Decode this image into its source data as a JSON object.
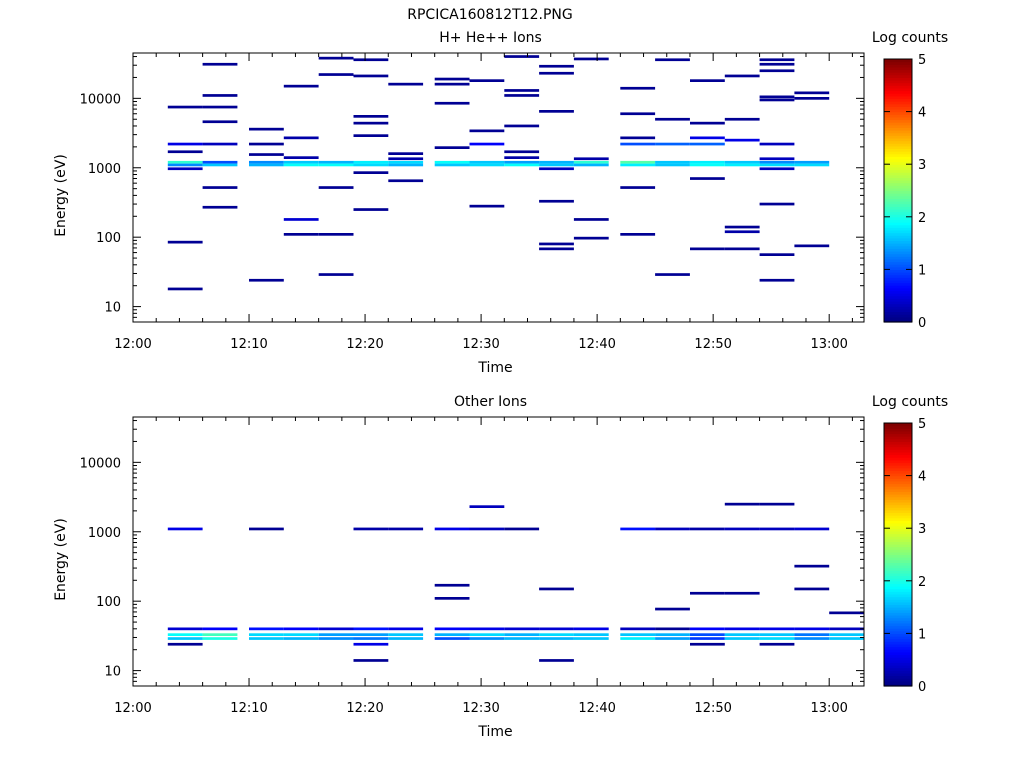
{
  "figure_title": "RPCICA160812T12.PNG",
  "chart_data": [
    {
      "type": "heatmap",
      "title": "H+ He++ Ions",
      "xlabel": "Time",
      "ylabel": "Energy (eV)",
      "y_scale": "log",
      "xlim": [
        "12:00",
        "13:03"
      ],
      "ylim": [
        6,
        45000
      ],
      "x_ticks": [
        "12:00",
        "12:10",
        "12:20",
        "12:30",
        "12:40",
        "12:50",
        "13:00"
      ],
      "y_ticks": [
        "10",
        "100",
        "1000",
        "10000"
      ],
      "colorbar": {
        "label": "Log counts",
        "range": [
          0,
          5
        ],
        "ticks": [
          "0",
          "1",
          "2",
          "3",
          "4",
          "5"
        ]
      },
      "time_bins": [
        "12:03",
        "12:06",
        "12:10",
        "12:13",
        "12:16",
        "12:19",
        "12:22",
        "12:26",
        "12:29",
        "12:32",
        "12:35",
        "12:38",
        "12:42",
        "12:45",
        "12:48",
        "12:51",
        "12:54",
        "12:57",
        "13:00"
      ],
      "cells": [
        [
          0,
          1200,
          2.1
        ],
        [
          0,
          1100,
          1.3
        ],
        [
          0,
          970,
          0.3
        ],
        [
          0,
          18,
          0.1
        ],
        [
          0,
          85,
          0.1
        ],
        [
          0,
          1700,
          0.1
        ],
        [
          0,
          2200,
          0.5
        ],
        [
          0,
          7500,
          0.1
        ],
        [
          1,
          1200,
          1.0
        ],
        [
          1,
          1100,
          1.6
        ],
        [
          1,
          2200,
          0.3
        ],
        [
          1,
          520,
          0.1
        ],
        [
          1,
          270,
          0.1
        ],
        [
          1,
          4600,
          0.1
        ],
        [
          1,
          7500,
          0.1
        ],
        [
          1,
          11000,
          0.1
        ],
        [
          1,
          31000,
          0.1
        ],
        [
          2,
          1200,
          1.3
        ],
        [
          2,
          1100,
          1.5
        ],
        [
          2,
          1550,
          0.1
        ],
        [
          2,
          24,
          0.1
        ],
        [
          2,
          2200,
          0.1
        ],
        [
          2,
          3600,
          0.1
        ],
        [
          3,
          1200,
          1.6
        ],
        [
          3,
          1100,
          1.9
        ],
        [
          3,
          1400,
          0.2
        ],
        [
          3,
          180,
          0.4
        ],
        [
          3,
          110,
          0.1
        ],
        [
          3,
          2700,
          0.2
        ],
        [
          3,
          15000,
          0.1
        ],
        [
          4,
          1200,
          1.5
        ],
        [
          4,
          1100,
          1.9
        ],
        [
          4,
          520,
          0.1
        ],
        [
          4,
          29,
          0.1
        ],
        [
          4,
          110,
          0.1
        ],
        [
          4,
          22000,
          0.1
        ],
        [
          4,
          38000,
          0.1
        ],
        [
          5,
          1200,
          1.8
        ],
        [
          5,
          1100,
          1.7
        ],
        [
          5,
          850,
          0.1
        ],
        [
          5,
          250,
          0.1
        ],
        [
          5,
          2900,
          0.1
        ],
        [
          5,
          4400,
          0.1
        ],
        [
          5,
          5500,
          0.1
        ],
        [
          5,
          21000,
          0.1
        ],
        [
          5,
          36000,
          0.1
        ],
        [
          6,
          1200,
          1.7
        ],
        [
          6,
          1100,
          1.5
        ],
        [
          6,
          1350,
          0.2
        ],
        [
          6,
          650,
          0.1
        ],
        [
          6,
          1600,
          0.1
        ],
        [
          6,
          16000,
          0.1
        ],
        [
          7,
          1200,
          1.9
        ],
        [
          7,
          1100,
          1.6
        ],
        [
          7,
          1950,
          0.1
        ],
        [
          7,
          8500,
          0.1
        ],
        [
          7,
          16000,
          0.1
        ],
        [
          7,
          19000,
          0.1
        ],
        [
          8,
          1200,
          1.6
        ],
        [
          8,
          1100,
          1.7
        ],
        [
          8,
          280,
          0.1
        ],
        [
          8,
          2200,
          0.6
        ],
        [
          8,
          3400,
          0.1
        ],
        [
          8,
          18000,
          0.1
        ],
        [
          9,
          1200,
          1.4
        ],
        [
          9,
          1100,
          1.9
        ],
        [
          9,
          1400,
          0.2
        ],
        [
          9,
          1700,
          0.1
        ],
        [
          9,
          4000,
          0.1
        ],
        [
          9,
          11000,
          0.1
        ],
        [
          9,
          13000,
          0.1
        ],
        [
          9,
          40000,
          0.1
        ],
        [
          10,
          1200,
          1.5
        ],
        [
          10,
          1100,
          1.6
        ],
        [
          10,
          970,
          0.3
        ],
        [
          10,
          80,
          0.1
        ],
        [
          10,
          68,
          0.1
        ],
        [
          10,
          330,
          0.1
        ],
        [
          10,
          6500,
          0.1
        ],
        [
          10,
          23000,
          0.1
        ],
        [
          10,
          29000,
          0.1
        ],
        [
          11,
          1200,
          2.1
        ],
        [
          11,
          1100,
          1.5
        ],
        [
          11,
          1350,
          0.2
        ],
        [
          11,
          180,
          0.1
        ],
        [
          11,
          97,
          0.1
        ],
        [
          11,
          37000,
          0.1
        ],
        [
          12,
          1200,
          2.3
        ],
        [
          12,
          1100,
          1.8
        ],
        [
          12,
          520,
          0.1
        ],
        [
          12,
          110,
          0.1
        ],
        [
          12,
          2200,
          1.0
        ],
        [
          12,
          2700,
          0.1
        ],
        [
          12,
          6000,
          0.1
        ],
        [
          12,
          14000,
          0.1
        ],
        [
          13,
          1200,
          1.6
        ],
        [
          13,
          1100,
          1.6
        ],
        [
          13,
          29,
          0.1
        ],
        [
          13,
          2200,
          1.1
        ],
        [
          13,
          5000,
          0.1
        ],
        [
          13,
          36000,
          0.1
        ],
        [
          14,
          1200,
          1.8
        ],
        [
          14,
          1100,
          1.9
        ],
        [
          14,
          700,
          0.1
        ],
        [
          14,
          68,
          0.1
        ],
        [
          14,
          2200,
          1.1
        ],
        [
          14,
          2700,
          0.5
        ],
        [
          14,
          4400,
          0.1
        ],
        [
          14,
          18000,
          0.1
        ],
        [
          15,
          1200,
          1.6
        ],
        [
          15,
          1100,
          1.8
        ],
        [
          15,
          68,
          0.1
        ],
        [
          15,
          120,
          0.2
        ],
        [
          15,
          140,
          0.1
        ],
        [
          15,
          2500,
          0.5
        ],
        [
          15,
          5000,
          0.1
        ],
        [
          15,
          21000,
          0.1
        ],
        [
          16,
          1200,
          1.3
        ],
        [
          16,
          1100,
          1.7
        ],
        [
          16,
          1350,
          0.3
        ],
        [
          16,
          970,
          0.3
        ],
        [
          16,
          24,
          0.1
        ],
        [
          16,
          56,
          0.1
        ],
        [
          16,
          300,
          0.1
        ],
        [
          16,
          2200,
          0.3
        ],
        [
          16,
          9500,
          0.1
        ],
        [
          16,
          10500,
          0.1
        ],
        [
          16,
          25000,
          0.1
        ],
        [
          16,
          31000,
          0.1
        ],
        [
          16,
          36000,
          0.1
        ],
        [
          17,
          1200,
          1.4
        ],
        [
          17,
          1100,
          1.7
        ],
        [
          17,
          75,
          0.1
        ],
        [
          17,
          10000,
          0.1
        ],
        [
          17,
          12000,
          0.1
        ]
      ]
    },
    {
      "type": "heatmap",
      "title": "Other Ions",
      "xlabel": "Time",
      "ylabel": "Energy (eV)",
      "y_scale": "log",
      "xlim": [
        "12:00",
        "13:03"
      ],
      "ylim": [
        6,
        45000
      ],
      "x_ticks": [
        "12:00",
        "12:10",
        "12:20",
        "12:30",
        "12:40",
        "12:50",
        "13:00"
      ],
      "y_ticks": [
        "10",
        "100",
        "1000",
        "10000"
      ],
      "colorbar": {
        "label": "Log counts",
        "range": [
          0,
          5
        ],
        "ticks": [
          "0",
          "1",
          "2",
          "3",
          "4",
          "5"
        ]
      },
      "time_bins": [
        "12:03",
        "12:06",
        "12:10",
        "12:13",
        "12:16",
        "12:19",
        "12:22",
        "12:26",
        "12:29",
        "12:32",
        "12:35",
        "12:38",
        "12:42",
        "12:45",
        "12:48",
        "12:51",
        "12:54",
        "12:57",
        "13:00"
      ],
      "cells": [
        [
          0,
          40,
          0.4
        ],
        [
          0,
          33,
          1.9
        ],
        [
          0,
          29,
          1.6
        ],
        [
          0,
          24,
          0.1
        ],
        [
          0,
          1100,
          0.5
        ],
        [
          1,
          40,
          0.6
        ],
        [
          1,
          33,
          2.2
        ],
        [
          1,
          29,
          2.0
        ],
        [
          2,
          40,
          0.7
        ],
        [
          2,
          33,
          1.7
        ],
        [
          2,
          29,
          1.6
        ],
        [
          2,
          1100,
          0.1
        ],
        [
          3,
          40,
          0.6
        ],
        [
          3,
          33,
          1.7
        ],
        [
          3,
          29,
          1.5
        ],
        [
          4,
          40,
          0.4
        ],
        [
          4,
          33,
          1.4
        ],
        [
          4,
          29,
          1.3
        ],
        [
          5,
          40,
          0.7
        ],
        [
          5,
          33,
          1.4
        ],
        [
          5,
          29,
          1.2
        ],
        [
          5,
          24,
          0.5
        ],
        [
          5,
          14,
          0.1
        ],
        [
          5,
          1100,
          0.2
        ],
        [
          6,
          40,
          0.5
        ],
        [
          6,
          33,
          1.6
        ],
        [
          6,
          29,
          1.5
        ],
        [
          6,
          1100,
          0.2
        ],
        [
          7,
          40,
          0.6
        ],
        [
          7,
          33,
          1.5
        ],
        [
          7,
          29,
          1.0
        ],
        [
          7,
          170,
          0.1
        ],
        [
          7,
          110,
          0.1
        ],
        [
          7,
          1100,
          0.5
        ],
        [
          8,
          40,
          0.5
        ],
        [
          8,
          33,
          1.7
        ],
        [
          8,
          29,
          1.3
        ],
        [
          8,
          2300,
          0.3
        ],
        [
          8,
          1100,
          0.3
        ],
        [
          9,
          40,
          0.4
        ],
        [
          9,
          33,
          1.5
        ],
        [
          9,
          29,
          1.5
        ],
        [
          9,
          1100,
          0.1
        ],
        [
          10,
          40,
          0.4
        ],
        [
          10,
          33,
          1.7
        ],
        [
          10,
          29,
          1.5
        ],
        [
          10,
          14,
          0.1
        ],
        [
          10,
          150,
          0.1
        ],
        [
          11,
          40,
          0.5
        ],
        [
          11,
          33,
          1.6
        ],
        [
          11,
          29,
          1.6
        ],
        [
          12,
          40,
          0.3
        ],
        [
          12,
          33,
          1.6
        ],
        [
          12,
          29,
          1.8
        ],
        [
          12,
          1100,
          0.7
        ],
        [
          13,
          40,
          0.1
        ],
        [
          13,
          33,
          1.5
        ],
        [
          13,
          29,
          1.4
        ],
        [
          13,
          77,
          0.1
        ],
        [
          13,
          1100,
          0.3
        ],
        [
          14,
          40,
          0.6
        ],
        [
          14,
          33,
          1.0
        ],
        [
          14,
          29,
          0.9
        ],
        [
          14,
          24,
          0.1
        ],
        [
          14,
          130,
          0.1
        ],
        [
          14,
          1100,
          0.2
        ],
        [
          15,
          40,
          0.5
        ],
        [
          15,
          33,
          1.6
        ],
        [
          15,
          29,
          1.6
        ],
        [
          15,
          130,
          0.1
        ],
        [
          15,
          2500,
          0.1
        ],
        [
          15,
          1100,
          0.3
        ],
        [
          16,
          40,
          0.5
        ],
        [
          16,
          33,
          1.6
        ],
        [
          16,
          29,
          1.7
        ],
        [
          16,
          24,
          0.1
        ],
        [
          16,
          2500,
          0.1
        ],
        [
          16,
          1100,
          0.3
        ],
        [
          17,
          40,
          0.5
        ],
        [
          17,
          33,
          1.2
        ],
        [
          17,
          29,
          1.3
        ],
        [
          17,
          150,
          0.1
        ],
        [
          17,
          320,
          0.1
        ],
        [
          17,
          1100,
          0.4
        ],
        [
          18,
          40,
          0.3
        ],
        [
          18,
          33,
          1.6
        ],
        [
          18,
          29,
          1.6
        ],
        [
          18,
          68,
          0.1
        ]
      ]
    }
  ]
}
